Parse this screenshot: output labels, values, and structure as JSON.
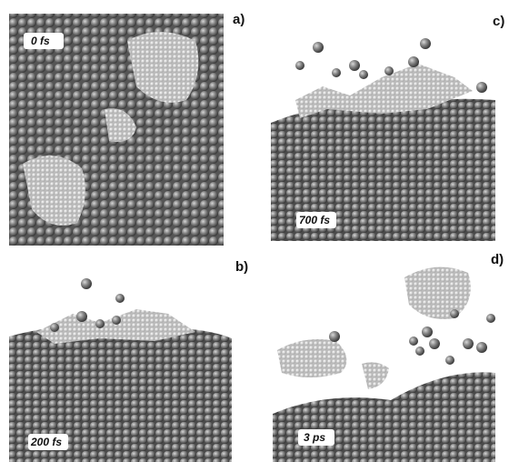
{
  "panels": [
    {
      "label": "a)",
      "time": "0 fs"
    },
    {
      "label": "b)",
      "time": "200 fs"
    },
    {
      "label": "c)",
      "time": "700 fs"
    },
    {
      "label": "d)",
      "time": "3 ps"
    }
  ]
}
